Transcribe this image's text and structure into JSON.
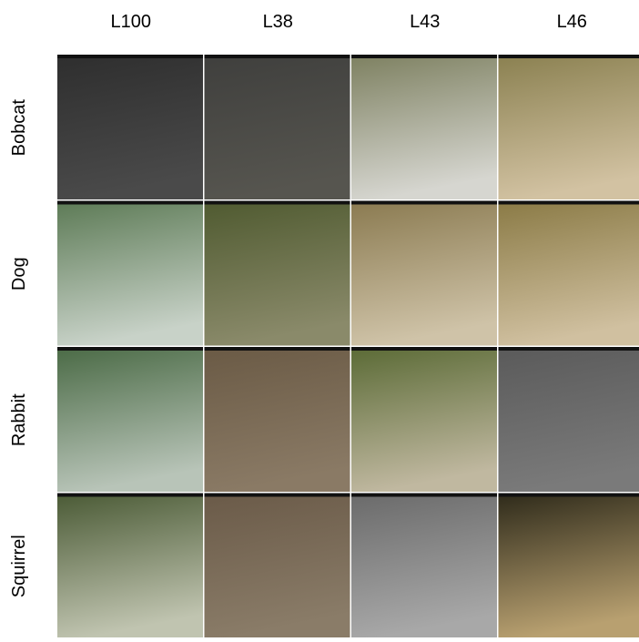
{
  "columns": [
    "L100",
    "L38",
    "L43",
    "L46"
  ],
  "rows": [
    "Bobcat",
    "Dog",
    "Rabbit",
    "Squirrel"
  ]
}
